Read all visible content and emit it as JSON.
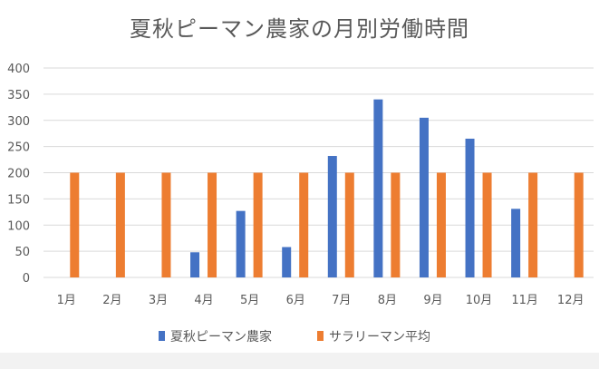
{
  "chart_data": {
    "type": "bar",
    "title": "夏秋ピーマン農家の月別労働時間",
    "xlabel": "",
    "ylabel": "",
    "categories": [
      "1月",
      "2月",
      "3月",
      "4月",
      "5月",
      "6月",
      "7月",
      "8月",
      "9月",
      "10月",
      "11月",
      "12月"
    ],
    "series": [
      {
        "name": "夏秋ピーマン農家",
        "color": "#4472c4",
        "values": [
          0,
          0,
          0,
          48,
          127,
          58,
          232,
          340,
          305,
          265,
          131,
          0
        ]
      },
      {
        "name": "サラリーマン平均",
        "color": "#ed7d31",
        "values": [
          200,
          200,
          200,
          200,
          200,
          200,
          200,
          200,
          200,
          200,
          200,
          200
        ]
      }
    ],
    "ylim": [
      0,
      400
    ],
    "yticks": [
      0,
      50,
      100,
      150,
      200,
      250,
      300,
      350,
      400
    ],
    "grid": true,
    "legend_position": "bottom"
  }
}
